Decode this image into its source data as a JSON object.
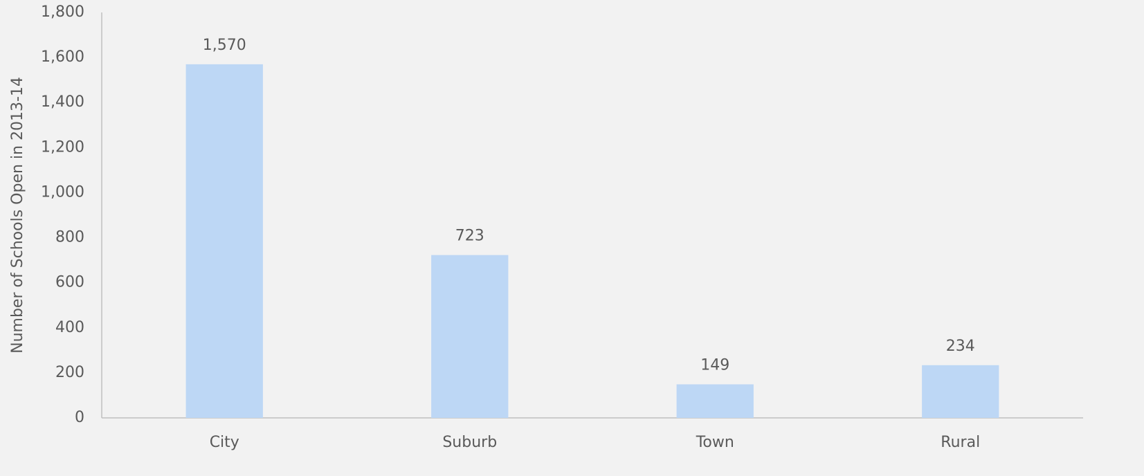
{
  "chart_data": {
    "type": "bar",
    "y_label": "Number of Schools Open in 2013-14",
    "categories": [
      "City",
      "Suburb",
      "Town",
      "Rural"
    ],
    "values": [
      1570,
      723,
      149,
      234
    ],
    "value_labels": [
      "1,570",
      "723",
      "149",
      "234"
    ],
    "color": "#bdd7f5",
    "ylim": [
      0,
      1800
    ],
    "yticks": [
      0,
      200,
      400,
      600,
      800,
      {
        "value": 1000,
        "label": "1,000"
      },
      {
        "value": 1200,
        "label": "1,200"
      },
      {
        "value": 1400,
        "label": "1,400"
      },
      {
        "value": 1600,
        "label": "1,600"
      },
      {
        "value": 1800,
        "label": "1,800"
      }
    ],
    "grid": false
  }
}
